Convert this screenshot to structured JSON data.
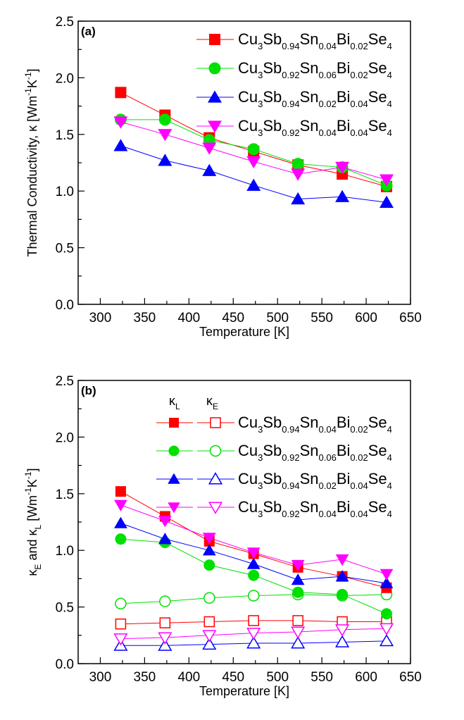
{
  "chart_data": [
    {
      "type": "line",
      "panel_label": "(a)",
      "xlabel": "Temperature [K]",
      "ylabel": "Thermal Conductivity, κ [Wm⁻¹K⁻¹]",
      "ylabel_parts": {
        "main": "Thermal Conductivity, κ [Wm",
        "sup1": "-1",
        "mid": "K",
        "sup2": "-1",
        "end": "]"
      },
      "xlim": [
        275,
        650
      ],
      "ylim": [
        0,
        2.5
      ],
      "xticks": [
        300,
        350,
        400,
        450,
        500,
        550,
        600,
        650
      ],
      "xtick_labels": [
        "300",
        "350",
        "400",
        "450",
        "500",
        "550",
        "600",
        "650"
      ],
      "yticks": [
        0.0,
        0.5,
        1.0,
        1.5,
        2.0,
        2.5
      ],
      "ytick_labels": [
        "0.0",
        "0.5",
        "1.0",
        "1.5",
        "2.0",
        "2.5"
      ],
      "legend_placement": "top-right",
      "x": [
        323,
        373,
        423,
        473,
        523,
        573,
        623
      ],
      "series": [
        {
          "name": "Cu3Sb0.94Sn0.04Bi0.02Se4",
          "color": "#ff0000",
          "marker": "square",
          "filled": true,
          "label": {
            "sb": "0.94",
            "sn": "0.04",
            "bi": "0.02"
          },
          "values": [
            1.87,
            1.67,
            1.47,
            1.35,
            1.23,
            1.15,
            1.04
          ]
        },
        {
          "name": "Cu3Sb0.92Sn0.06Bi0.02Se4",
          "color": "#00e000",
          "marker": "circle",
          "filled": true,
          "label": {
            "sb": "0.92",
            "sn": "0.06",
            "bi": "0.02"
          },
          "values": [
            1.63,
            1.63,
            1.45,
            1.37,
            1.24,
            1.21,
            1.05
          ]
        },
        {
          "name": "Cu3Sb0.94Sn0.02Bi0.04Se4",
          "color": "#0000ff",
          "marker": "triangle-up",
          "filled": true,
          "label": {
            "sb": "0.94",
            "sn": "0.02",
            "bi": "0.04"
          },
          "values": [
            1.4,
            1.27,
            1.18,
            1.05,
            0.93,
            0.95,
            0.9
          ]
        },
        {
          "name": "Cu3Sb0.92Sn0.04Bi0.04Se4",
          "color": "#ff00ff",
          "marker": "triangle-down",
          "filled": true,
          "label": {
            "sb": "0.92",
            "sn": "0.04",
            "bi": "0.04"
          },
          "values": [
            1.61,
            1.5,
            1.38,
            1.26,
            1.15,
            1.21,
            1.1
          ]
        }
      ]
    },
    {
      "type": "line",
      "panel_label": "(b)",
      "xlabel": "Temperature [K]",
      "ylabel": "κE and κL [Wm⁻¹K⁻¹]",
      "ylabel_parts": {
        "k1": "κ",
        "sub1": "E",
        "and": " and κ",
        "sub2": "L",
        "unit": " [Wm",
        "sup1": "-1",
        "mid": "K",
        "sup2": "-1",
        "end": "]"
      },
      "legend_headers": {
        "kl": "κ",
        "kl_sub": "L",
        "ke": "κ",
        "ke_sub": "E"
      },
      "xlim": [
        275,
        650
      ],
      "ylim": [
        0,
        2.5
      ],
      "xticks": [
        300,
        350,
        400,
        450,
        500,
        550,
        600,
        650
      ],
      "xtick_labels": [
        "300",
        "350",
        "400",
        "450",
        "500",
        "550",
        "600",
        "650"
      ],
      "yticks": [
        0.0,
        0.5,
        1.0,
        1.5,
        2.0,
        2.5
      ],
      "ytick_labels": [
        "0.0",
        "0.5",
        "1.0",
        "1.5",
        "2.0",
        "2.5"
      ],
      "legend_placement": "top-right",
      "x": [
        323,
        373,
        423,
        473,
        523,
        573,
        623
      ],
      "series": [
        {
          "name": "Cu3Sb0.94Sn0.04Bi0.02Se4",
          "color": "#ff0000",
          "marker": "square",
          "label": {
            "sb": "0.94",
            "sn": "0.04",
            "bi": "0.02"
          },
          "kappa_L": [
            1.52,
            1.3,
            1.08,
            0.97,
            0.85,
            0.77,
            0.67
          ],
          "kappa_E": [
            0.35,
            0.36,
            0.37,
            0.38,
            0.38,
            0.37,
            0.37
          ]
        },
        {
          "name": "Cu3Sb0.92Sn0.06Bi0.02Se4",
          "color": "#00e000",
          "marker": "circle",
          "label": {
            "sb": "0.92",
            "sn": "0.06",
            "bi": "0.02"
          },
          "kappa_L": [
            1.1,
            1.07,
            0.87,
            0.78,
            0.63,
            0.61,
            0.44
          ],
          "kappa_E": [
            0.53,
            0.55,
            0.58,
            0.6,
            0.61,
            0.6,
            0.61
          ]
        },
        {
          "name": "Cu3Sb0.94Sn0.02Bi0.04Se4",
          "color": "#0000ff",
          "marker": "triangle-up",
          "label": {
            "sb": "0.94",
            "sn": "0.02",
            "bi": "0.04"
          },
          "kappa_L": [
            1.24,
            1.1,
            1.0,
            0.88,
            0.74,
            0.77,
            0.71
          ],
          "kappa_E": [
            0.16,
            0.16,
            0.17,
            0.18,
            0.18,
            0.19,
            0.2
          ]
        },
        {
          "name": "Cu3Sb0.92Sn0.04Bi0.04Se4",
          "color": "#ff00ff",
          "marker": "triangle-down",
          "label": {
            "sb": "0.92",
            "sn": "0.04",
            "bi": "0.04"
          },
          "kappa_L": [
            1.4,
            1.26,
            1.11,
            0.98,
            0.87,
            0.92,
            0.79
          ],
          "kappa_E": [
            0.22,
            0.23,
            0.25,
            0.27,
            0.28,
            0.3,
            0.31
          ]
        }
      ]
    }
  ]
}
